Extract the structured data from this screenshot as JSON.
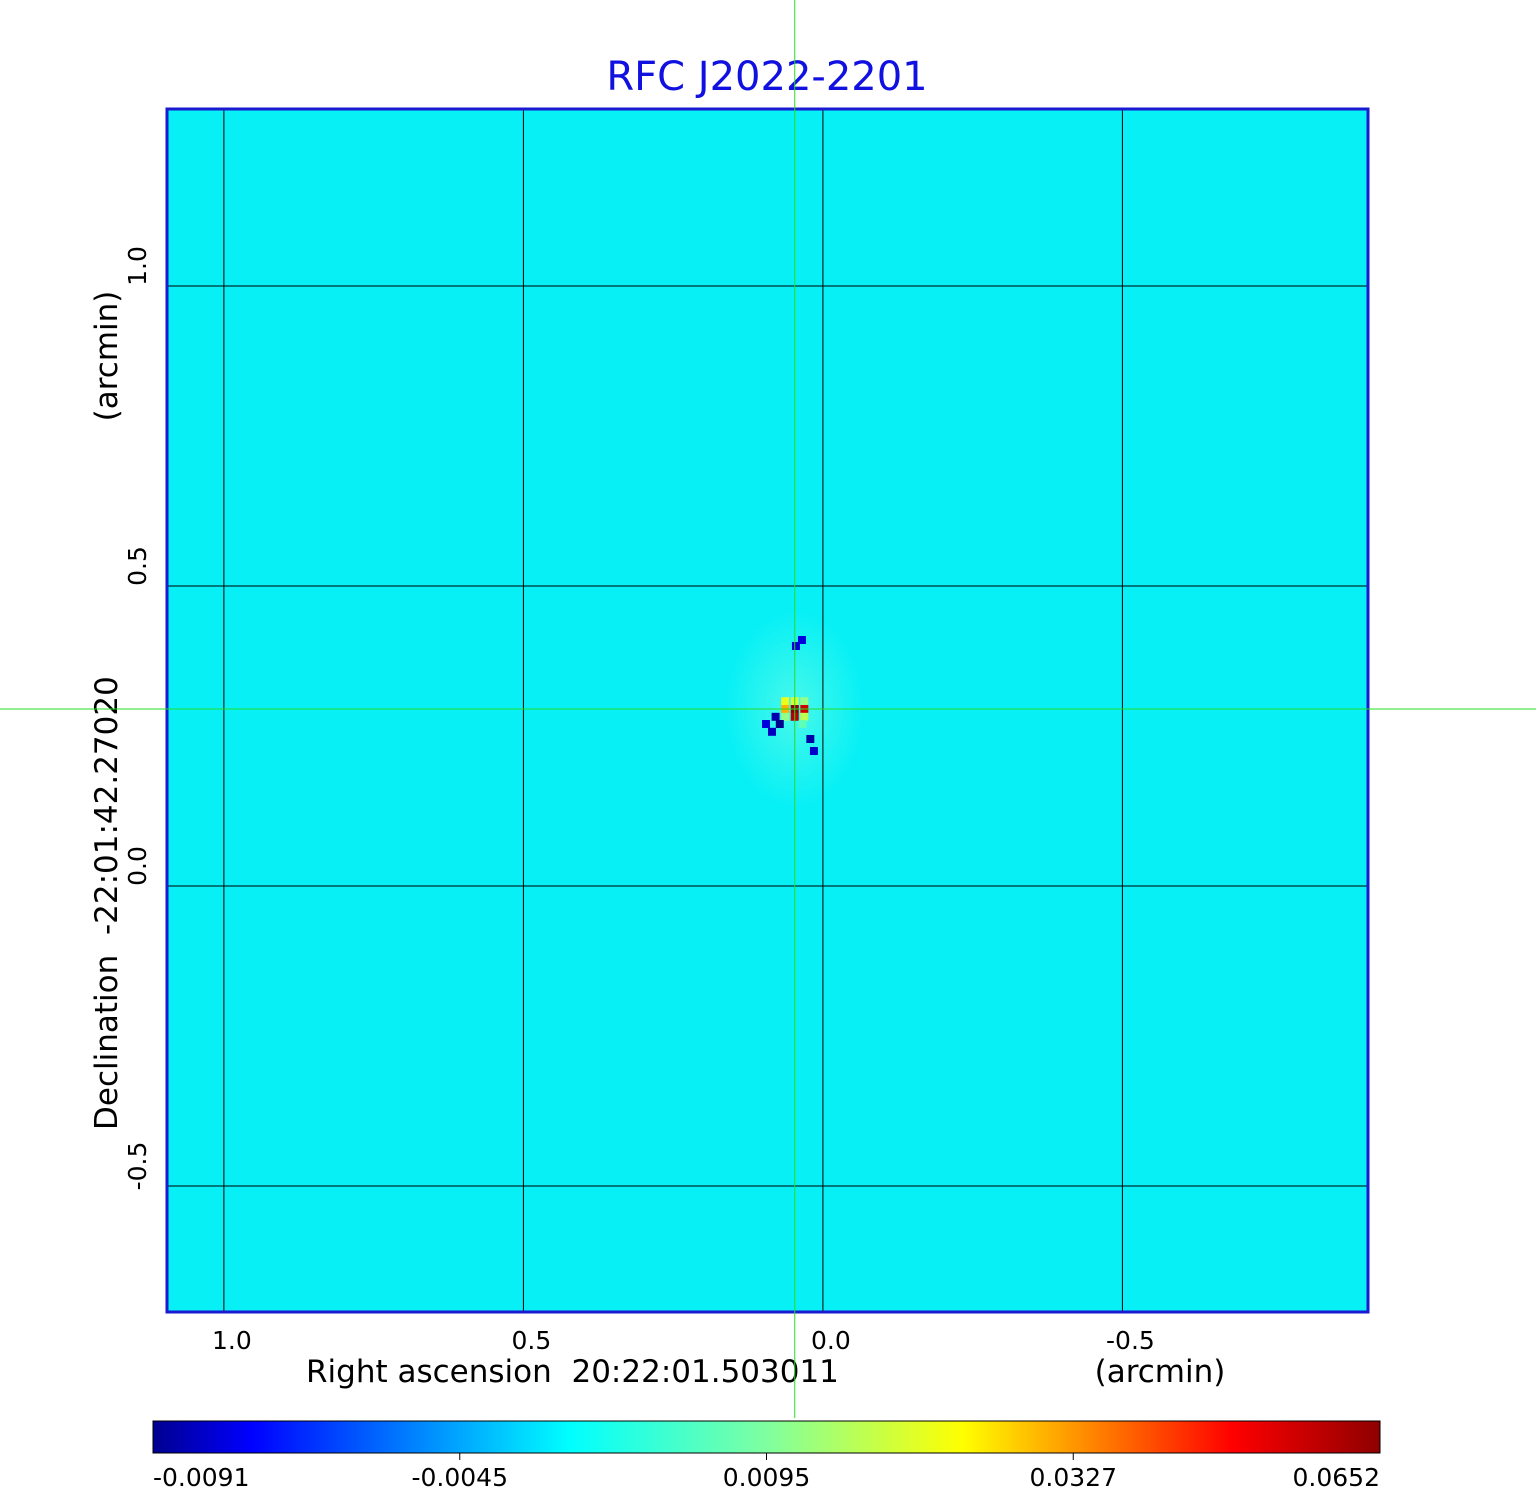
{
  "chart_data": {
    "type": "heatmap",
    "title": "RFC J2022-2201",
    "xlabel": "Right ascension  20:22:01.503011",
    "xunit": "(arcmin)",
    "ylabel": "Declination  -22:01:42.27020",
    "yunit": "(arcmin)",
    "xlim": [
      1.095,
      -0.91
    ],
    "ylim": [
      -0.71,
      1.295
    ],
    "x_ticks": [
      1.0,
      0.5,
      0.0,
      -0.5
    ],
    "x_tick_labels": [
      "1.0",
      "0.5",
      "0.0",
      "-0.5"
    ],
    "y_ticks": [
      1.0,
      0.5,
      0.0,
      -0.5
    ],
    "y_tick_labels": [
      "1.0",
      "0.5",
      "0.0",
      "-0.5"
    ],
    "grid": true,
    "crosshair": {
      "x": 0.047,
      "y": 0.295
    },
    "colorbar": {
      "ticks": [
        -0.0091,
        -0.0045,
        0.0095,
        0.0327,
        0.0652
      ],
      "tick_labels": [
        "-0.0091",
        "-0.0045",
        "0.0095",
        "0.0327",
        "0.0652"
      ]
    },
    "source": {
      "background_value": -0.0018,
      "peak": {
        "x": 0.047,
        "y": 0.295,
        "value": 0.0652
      },
      "pixels": [
        {
          "x": 0.063,
          "y": 0.308,
          "value": 0.038
        },
        {
          "x": 0.047,
          "y": 0.308,
          "value": 0.036
        },
        {
          "x": 0.031,
          "y": 0.308,
          "value": 0.03
        },
        {
          "x": 0.063,
          "y": 0.295,
          "value": 0.045
        },
        {
          "x": 0.047,
          "y": 0.295,
          "value": 0.0652
        },
        {
          "x": 0.031,
          "y": 0.295,
          "value": 0.06
        },
        {
          "x": 0.063,
          "y": 0.282,
          "value": 0.03
        },
        {
          "x": 0.047,
          "y": 0.282,
          "value": 0.062
        },
        {
          "x": 0.031,
          "y": 0.282,
          "value": 0.034
        },
        {
          "x": 0.079,
          "y": 0.282,
          "value": -0.0075
        },
        {
          "x": 0.072,
          "y": 0.27,
          "value": -0.0091
        },
        {
          "x": 0.034,
          "y": 0.27,
          "value": 0.025
        },
        {
          "x": 0.021,
          "y": 0.245,
          "value": -0.008
        },
        {
          "x": 0.085,
          "y": 0.257,
          "value": -0.0065
        },
        {
          "x": 0.095,
          "y": 0.27,
          "value": -0.005
        },
        {
          "x": 0.045,
          "y": 0.4,
          "value": -0.0055
        },
        {
          "x": 0.035,
          "y": 0.41,
          "value": -0.005
        },
        {
          "x": 0.015,
          "y": 0.225,
          "value": -0.006
        }
      ]
    }
  }
}
